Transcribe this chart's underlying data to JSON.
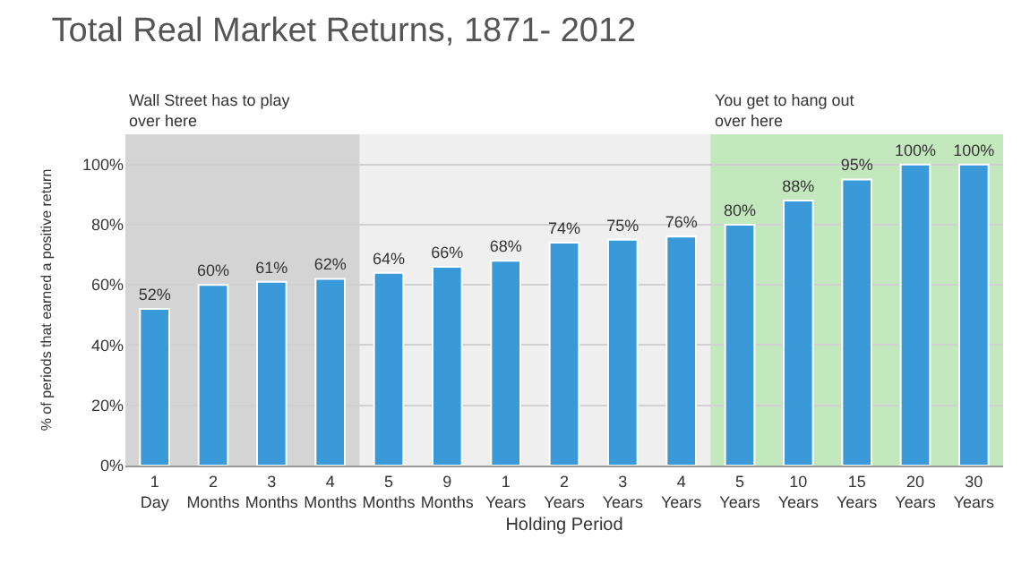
{
  "chart_data": {
    "type": "bar",
    "title": "Total Real Market Returns, 1871- 2012",
    "xlabel": "Holding Period",
    "ylabel": "% of periods that earned a positive return",
    "categories": [
      "1\nDay",
      "2\nMonths",
      "3\nMonths",
      "4\nMonths",
      "5\nMonths",
      "9\nMonths",
      "1\nYears",
      "2\nYears",
      "3\nYears",
      "4\nYears",
      "5\nYears",
      "10\nYears",
      "15\nYears",
      "20\nYears",
      "30\nYears"
    ],
    "values": [
      52,
      60,
      61,
      62,
      64,
      66,
      68,
      74,
      75,
      76,
      80,
      88,
      95,
      100,
      100
    ],
    "value_labels": [
      "52%",
      "60%",
      "61%",
      "62%",
      "64%",
      "66%",
      "68%",
      "74%",
      "75%",
      "76%",
      "80%",
      "88%",
      "95%",
      "100%",
      "100%"
    ],
    "color": "#3a9ad9",
    "ylim": [
      0,
      110
    ],
    "yticks": [
      {
        "value": 0,
        "label": "0%"
      },
      {
        "value": 20,
        "label": "20%"
      },
      {
        "value": 40,
        "label": "40%"
      },
      {
        "value": 60,
        "label": "60%"
      },
      {
        "value": 80,
        "label": "80%"
      },
      {
        "value": 100,
        "label": "100%"
      }
    ],
    "grid": "y",
    "bands": [
      {
        "axis": "x",
        "from": "1\nDay",
        "to": "4\nMonths",
        "label": "Wall Street has to play\nover here",
        "color": "#b4b4b4"
      },
      {
        "axis": "x",
        "from": "5\nYears",
        "to": "30\nYears",
        "label": "You get to hang out\nover here",
        "color": "#90e080"
      }
    ]
  }
}
